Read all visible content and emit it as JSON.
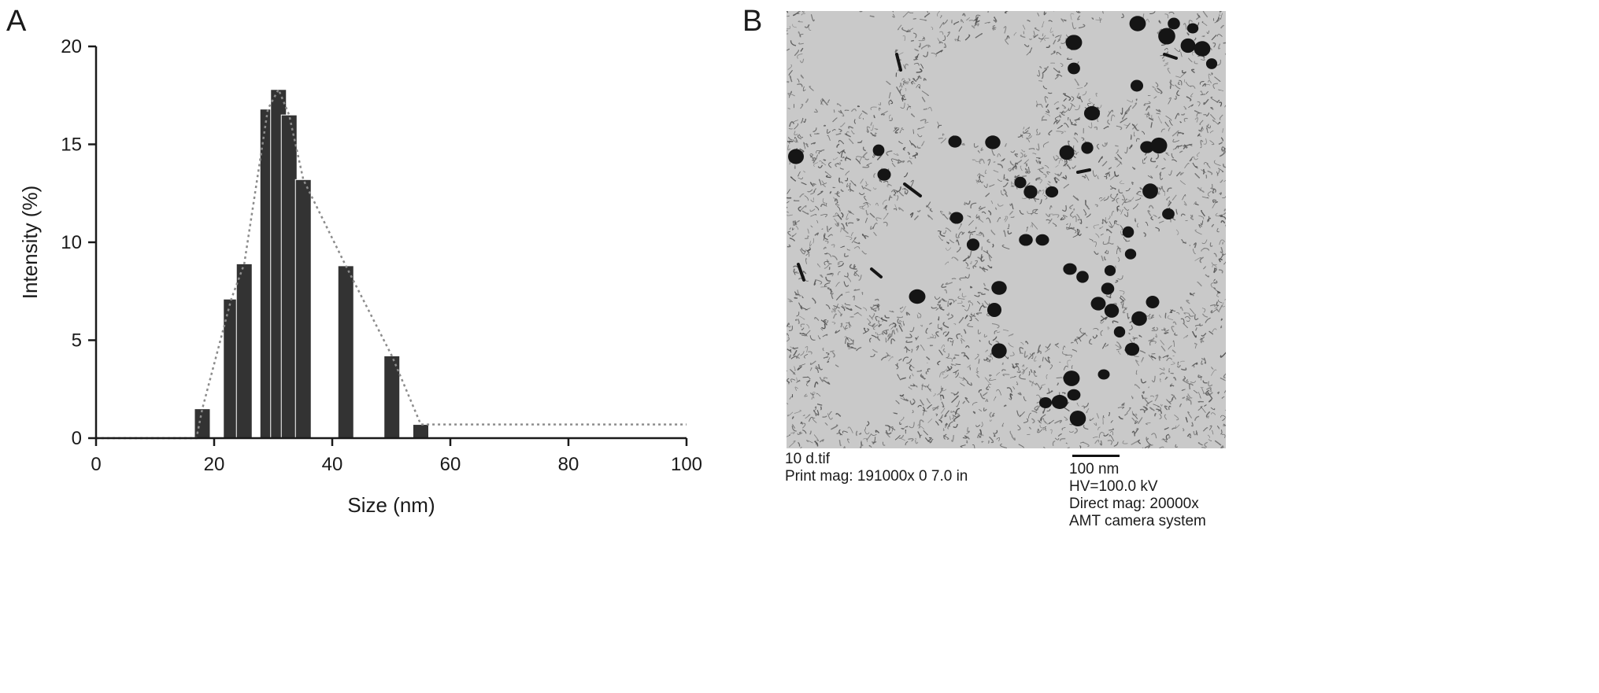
{
  "panels": {
    "a_label": "A",
    "b_label": "B"
  },
  "chart_data": {
    "type": "bar",
    "xlabel": "Size (nm)",
    "ylabel": "Intensity (%)",
    "xlim": [
      0,
      100
    ],
    "ylim": [
      0,
      20
    ],
    "xticks": [
      0,
      20,
      40,
      60,
      80,
      100
    ],
    "yticks": [
      0,
      5,
      10,
      15,
      20
    ],
    "bar_color": "#333333",
    "trend_color": "#8c8c8c",
    "bars": [
      {
        "x": 18.0,
        "y": 1.5
      },
      {
        "x": 22.9,
        "y": 7.1
      },
      {
        "x": 25.1,
        "y": 8.9
      },
      {
        "x": 29.1,
        "y": 16.8
      },
      {
        "x": 30.9,
        "y": 17.8
      },
      {
        "x": 32.7,
        "y": 16.5
      },
      {
        "x": 35.1,
        "y": 13.2
      },
      {
        "x": 42.3,
        "y": 8.8
      },
      {
        "x": 50.1,
        "y": 4.2
      },
      {
        "x": 55.0,
        "y": 0.7
      }
    ],
    "trend": [
      {
        "x": 0,
        "y": 0.0
      },
      {
        "x": 17,
        "y": 0.0
      },
      {
        "x": 18.0,
        "y": 1.5
      },
      {
        "x": 22.9,
        "y": 7.1
      },
      {
        "x": 25.1,
        "y": 8.9
      },
      {
        "x": 29.1,
        "y": 16.8
      },
      {
        "x": 30.9,
        "y": 17.8
      },
      {
        "x": 32.7,
        "y": 16.5
      },
      {
        "x": 35.1,
        "y": 13.2
      },
      {
        "x": 42.3,
        "y": 8.8
      },
      {
        "x": 50.1,
        "y": 4.2
      },
      {
        "x": 55.0,
        "y": 0.7
      },
      {
        "x": 100,
        "y": 0.7
      }
    ],
    "grid": false,
    "legend": "none"
  },
  "micrograph": {
    "image_kind": "TEM micrograph of nanoparticles",
    "background_color": "#c9c9c9",
    "network_color": "#555555",
    "particle_color": "#151515",
    "file_name": "10 d.tif",
    "print_mag": "Print mag: 191000x 0 7.0 in",
    "scale_bar_label": "100 nm",
    "hv": "HV=100.0 kV",
    "direct_mag": "Direct mag: 20000x",
    "camera": "AMT camera system"
  }
}
